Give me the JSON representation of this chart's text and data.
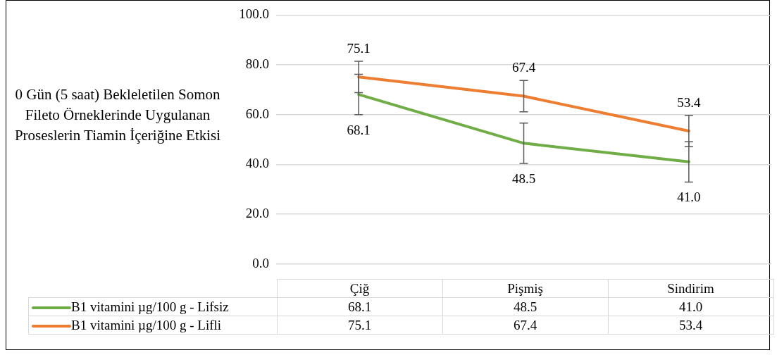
{
  "chart_data": {
    "type": "line",
    "title": "0 Gün (5 saat) Bekleletilen Somon Fileto Örneklerinde Uygulanan Proseslerin Tiamin İçeriğine Etkisi",
    "categories": [
      "Çiğ",
      "Pişmiş",
      "Sindirim"
    ],
    "series": [
      {
        "name": "B1 vitamini µg/100 g - Lifsiz",
        "color": "#70ad47",
        "values": [
          68.1,
          48.5,
          41.0
        ],
        "value_labels": [
          "68.1",
          "48.5",
          "41.0"
        ],
        "errors": [
          8.1,
          8.1,
          8.1
        ]
      },
      {
        "name": "B1 vitamini µg/100 g - Lifli",
        "color": "#ed7d31",
        "values": [
          75.1,
          67.4,
          53.4
        ],
        "value_labels": [
          "75.1",
          "67.4",
          "53.4"
        ],
        "errors": [
          6.3,
          6.3,
          6.3
        ]
      }
    ],
    "ylim": [
      0,
      100
    ],
    "yticks": [
      {
        "value": 0,
        "label": "0.0"
      },
      {
        "value": 20,
        "label": "20.0"
      },
      {
        "value": 40,
        "label": "40.0"
      },
      {
        "value": 60,
        "label": "60.0"
      },
      {
        "value": 80,
        "label": "80.0"
      },
      {
        "value": 100,
        "label": "100.0"
      }
    ],
    "grid": "y",
    "legend": "bottom",
    "marker": "none",
    "line_style": "solid"
  }
}
